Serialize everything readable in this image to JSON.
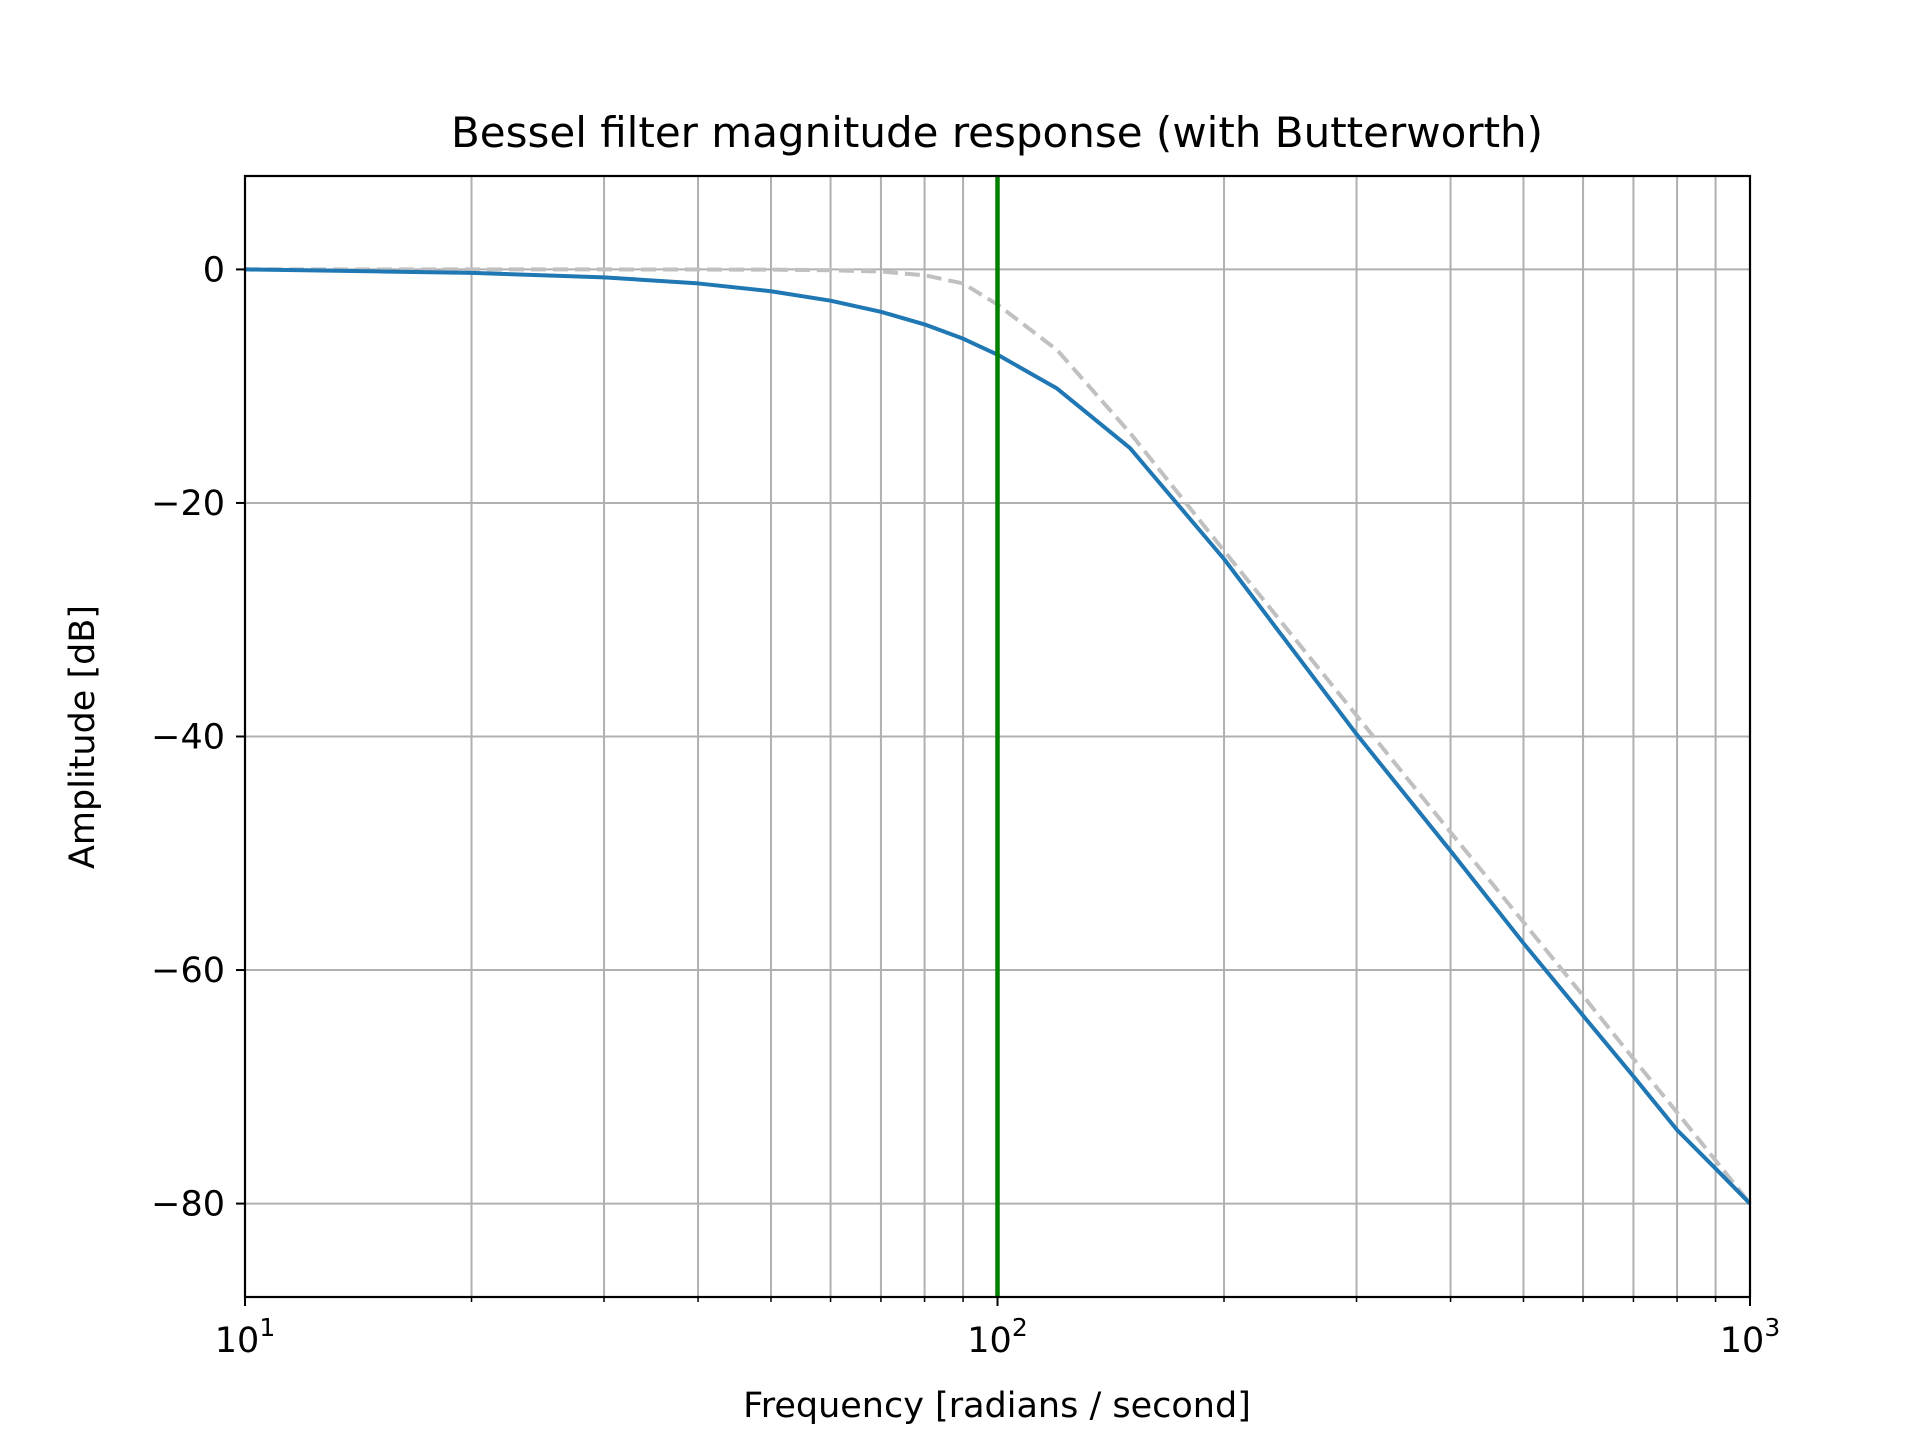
{
  "chart_data": {
    "type": "line",
    "title": "Bessel filter magnitude response (with Butterworth)",
    "xlabel": "Frequency [radians / second]",
    "ylabel": "Amplitude [dB]",
    "xscale": "log",
    "xlim": [
      10,
      1000
    ],
    "ylim": [
      -88,
      8
    ],
    "grid": true,
    "grid_minor": true,
    "xticks": [
      {
        "value": 10,
        "base": "10",
        "exp": "1"
      },
      {
        "value": 100,
        "base": "10",
        "exp": "2"
      },
      {
        "value": 1000,
        "base": "10",
        "exp": "3"
      }
    ],
    "yticks": [
      {
        "value": 0,
        "label": "0"
      },
      {
        "value": -20,
        "label": "−20"
      },
      {
        "value": -40,
        "label": "−40"
      },
      {
        "value": -60,
        "label": "−60"
      },
      {
        "value": -80,
        "label": "−80"
      }
    ],
    "vline": {
      "x": 100,
      "color": "#008000"
    },
    "series": [
      {
        "style": "solid",
        "color": "#1f77b4",
        "x": [
          10,
          15,
          20,
          30,
          40,
          50,
          60,
          70,
          80,
          90,
          100,
          120,
          150,
          200,
          300,
          400,
          500,
          600,
          700,
          800,
          900,
          1000
        ],
        "y": [
          0,
          -0.17,
          -0.3,
          -0.68,
          -1.2,
          -1.87,
          -2.68,
          -3.63,
          -4.71,
          -5.93,
          -7.3,
          -10.2,
          -15.3,
          -24.8,
          -39.8,
          -49.8,
          -57.7,
          -63.9,
          -69.1,
          -73.7,
          -77.0,
          -80.0
        ]
      },
      {
        "style": "dashed",
        "color": "#c0c0c0",
        "x": [
          10,
          20,
          30,
          40,
          50,
          60,
          70,
          80,
          90,
          100,
          120,
          150,
          200,
          300,
          400,
          500,
          600,
          700,
          800,
          900,
          1000
        ],
        "y": [
          0,
          0,
          0,
          -0.01,
          -0.02,
          -0.07,
          -0.18,
          -0.5,
          -1.2,
          -3.01,
          -6.9,
          -14.0,
          -24.1,
          -38.2,
          -48.2,
          -55.9,
          -62.2,
          -67.6,
          -72.2,
          -76.3,
          -80.0
        ]
      }
    ]
  }
}
